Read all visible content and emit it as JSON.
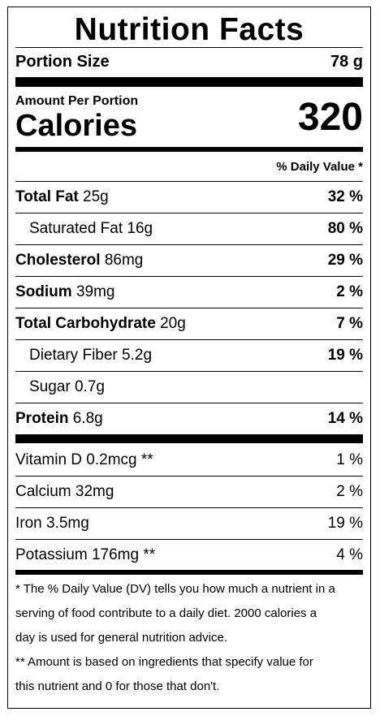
{
  "title": "Nutrition Facts",
  "portion": {
    "label": "Portion Size",
    "value": "78 g"
  },
  "amount_per_portion": "Amount Per Portion",
  "calories": {
    "label": "Calories",
    "value": "320"
  },
  "daily_value_header": "% Daily Value *",
  "nutrients": [
    {
      "name": "Total Fat",
      "amount": "25g",
      "pct": "32 %",
      "bold": true,
      "indent": false
    },
    {
      "name": "Saturated Fat",
      "amount": "16g",
      "pct": "80 %",
      "bold": false,
      "indent": true
    },
    {
      "name": "Cholesterol",
      "amount": "86mg",
      "pct": "29 %",
      "bold": true,
      "indent": false
    },
    {
      "name": "Sodium",
      "amount": "39mg",
      "pct": "2 %",
      "bold": true,
      "indent": false
    },
    {
      "name": "Total Carbohydrate",
      "amount": "20g",
      "pct": "7 %",
      "bold": true,
      "indent": false
    },
    {
      "name": "Dietary Fiber",
      "amount": "5.2g",
      "pct": "19 %",
      "bold": false,
      "indent": true
    },
    {
      "name": "Sugar",
      "amount": "0.7g",
      "pct": "",
      "bold": false,
      "indent": true
    },
    {
      "name": "Protein",
      "amount": "6.8g",
      "pct": "14 %",
      "bold": true,
      "indent": false
    }
  ],
  "vitamins": [
    {
      "text": "Vitamin D 0.2mcg **",
      "pct": "1 %"
    },
    {
      "text": "Calcium 32mg",
      "pct": "2 %"
    },
    {
      "text": "Iron 3.5mg",
      "pct": "19 %"
    },
    {
      "text": "Potassium 176mg **",
      "pct": "4 %"
    }
  ],
  "footnotes": [
    "* The % Daily Value (DV) tells you how much a nutrient in a",
    "serving of food contribute to a daily diet. 2000 calories a",
    "day is used for general nutrition advice.",
    "** Amount is based on ingredients that specify value for",
    "this nutrient and 0 for those that don't."
  ]
}
